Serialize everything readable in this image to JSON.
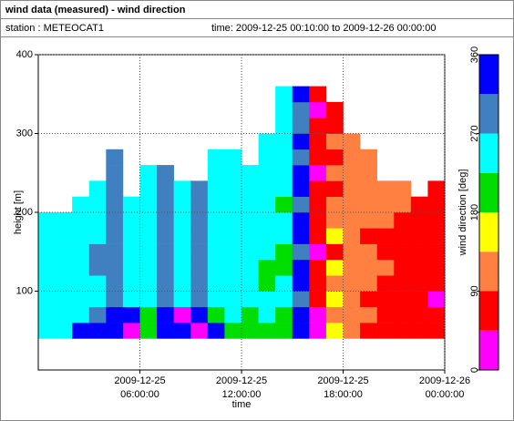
{
  "chart_data": {
    "type": "heatmap",
    "title": "wind data (measured) - wind direction",
    "station": "station : METEOCAT1",
    "period": "time: 2009-12-25 00:10:00 to 2009-12-26 00:00:00",
    "xlabel": "time",
    "ylabel": "height [m]",
    "colorbar_label": "wind direction [deg]",
    "xlim": [
      "2009-12-25 00:00:00",
      "2009-12-26 00:00:00"
    ],
    "xticks": [
      "2009-12-25 06:00:00",
      "2009-12-25 12:00:00",
      "2009-12-25 18:00:00",
      "2009-12-26 00:00:00"
    ],
    "ylim": [
      0,
      400
    ],
    "yticks": [
      100,
      200,
      300,
      400
    ],
    "grid": true,
    "clim": [
      0,
      360
    ],
    "cticks": [
      0,
      90,
      180,
      270,
      360
    ],
    "bounds": [
      0,
      45,
      90,
      135,
      180,
      225,
      270,
      315,
      360
    ],
    "colors": [
      "#ff00ff",
      "#ff0000",
      "#ff8040",
      "#ffff00",
      "#00dd00",
      "#00ffff",
      "#4080c0",
      "#0000ff"
    ],
    "x": [
      "2009-12-25 00:30:00",
      "2009-12-25 01:30:00",
      "2009-12-25 02:30:00",
      "2009-12-25 03:30:00",
      "2009-12-25 04:30:00",
      "2009-12-25 05:30:00",
      "2009-12-25 06:30:00",
      "2009-12-25 07:30:00",
      "2009-12-25 08:30:00",
      "2009-12-25 09:30:00",
      "2009-12-25 10:30:00",
      "2009-12-25 11:30:00",
      "2009-12-25 12:30:00",
      "2009-12-25 13:30:00",
      "2009-12-25 14:30:00",
      "2009-12-25 15:30:00",
      "2009-12-25 16:30:00",
      "2009-12-25 17:30:00",
      "2009-12-25 18:30:00",
      "2009-12-25 19:30:00",
      "2009-12-25 20:30:00",
      "2009-12-25 21:30:00",
      "2009-12-25 22:30:00",
      "2009-12-25 23:30:00"
    ],
    "heights": [
      40,
      60,
      80,
      100,
      120,
      140,
      160,
      180,
      200,
      220,
      240,
      260,
      280,
      300,
      320,
      340
    ],
    "z": [
      [
        250,
        250,
        245,
        250,
        255,
        250,
        250,
        248,
        null,
        null,
        null,
        null,
        null,
        null,
        null,
        null
      ],
      [
        260,
        250,
        250,
        250,
        250,
        250,
        250,
        250,
        null,
        null,
        null,
        null,
        null,
        null,
        null,
        null
      ],
      [
        330,
        250,
        250,
        250,
        250,
        255,
        250,
        250,
        250,
        null,
        null,
        null,
        null,
        null,
        null,
        null
      ],
      [
        340,
        300,
        250,
        250,
        290,
        295,
        250,
        250,
        250,
        250,
        null,
        null,
        null,
        null,
        null,
        null
      ],
      [
        340,
        330,
        290,
        290,
        295,
        290,
        290,
        285,
        290,
        295,
        290,
        290,
        null,
        null,
        null,
        null
      ],
      [
        20,
        330,
        250,
        250,
        250,
        250,
        250,
        250,
        250,
        null,
        null,
        null,
        null,
        null,
        null,
        null
      ],
      [
        200,
        210,
        250,
        250,
        250,
        250,
        250,
        250,
        250,
        250,
        250,
        null,
        null,
        null,
        null,
        null
      ],
      [
        340,
        340,
        300,
        290,
        290,
        295,
        300,
        290,
        290,
        290,
        290,
        null,
        null,
        null,
        null,
        null
      ],
      [
        330,
        20,
        250,
        250,
        250,
        250,
        250,
        250,
        250,
        250,
        null,
        null,
        null,
        null,
        null,
        null
      ],
      [
        10,
        330,
        300,
        290,
        290,
        290,
        295,
        290,
        290,
        290,
        null,
        null,
        null,
        null,
        null,
        null
      ],
      [
        330,
        200,
        250,
        250,
        250,
        250,
        250,
        250,
        250,
        250,
        250,
        250,
        null,
        null,
        null,
        null
      ],
      [
        200,
        250,
        250,
        250,
        250,
        250,
        250,
        250,
        250,
        250,
        250,
        250,
        null,
        null,
        null,
        null
      ],
      [
        200,
        200,
        250,
        250,
        250,
        250,
        250,
        250,
        250,
        250,
        250,
        null,
        null,
        null,
        null,
        null
      ],
      [
        200,
        250,
        250,
        210,
        210,
        250,
        250,
        250,
        250,
        250,
        250,
        250,
        250,
        null,
        null,
        null
      ],
      [
        200,
        200,
        250,
        250,
        210,
        210,
        250,
        250,
        210,
        250,
        250,
        250,
        250,
        250,
        250,
        250
      ],
      [
        330,
        340,
        300,
        330,
        340,
        290,
        330,
        340,
        300,
        330,
        340,
        300,
        330,
        300,
        290,
        330
      ],
      [
        20,
        30,
        60,
        70,
        60,
        20,
        70,
        60,
        70,
        60,
        20,
        60,
        60,
        70,
        10,
        60
      ],
      [
        160,
        120,
        160,
        110,
        160,
        70,
        160,
        110,
        120,
        70,
        110,
        80,
        110,
        60,
        70,
        null
      ],
      [
        110,
        110,
        120,
        110,
        100,
        110,
        120,
        110,
        110,
        110,
        110,
        110,
        100,
        null,
        null,
        null
      ],
      [
        70,
        110,
        60,
        110,
        120,
        110,
        70,
        110,
        110,
        120,
        110,
        110,
        null,
        null,
        null,
        null
      ],
      [
        60,
        70,
        60,
        70,
        110,
        60,
        70,
        110,
        110,
        120,
        null,
        null,
        null,
        null,
        null,
        null
      ],
      [
        70,
        60,
        70,
        60,
        60,
        70,
        60,
        70,
        100,
        110,
        null,
        null,
        null,
        null,
        null,
        null
      ],
      [
        60,
        70,
        60,
        70,
        60,
        70,
        60,
        70,
        60,
        null,
        null,
        null,
        null,
        null,
        null,
        null
      ],
      [
        70,
        60,
        20,
        70,
        60,
        70,
        60,
        70,
        60,
        70,
        null,
        null,
        null,
        null,
        null,
        null
      ]
    ]
  }
}
